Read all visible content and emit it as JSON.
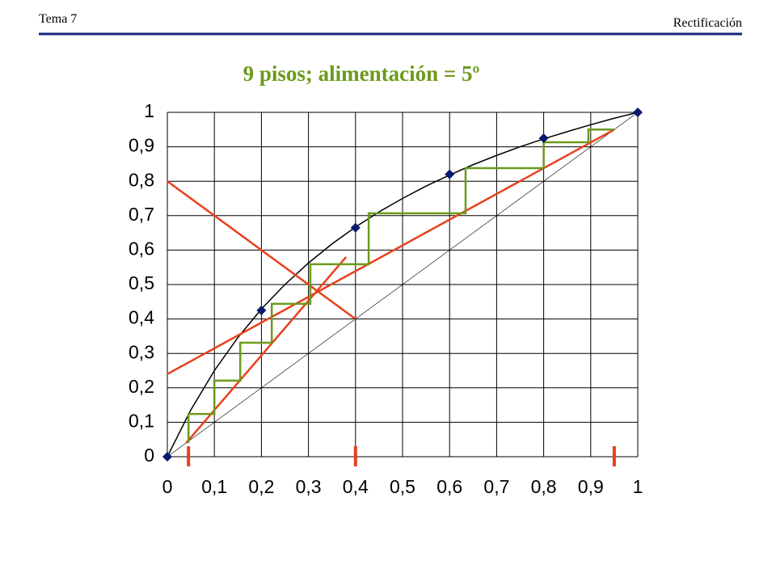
{
  "header": {
    "left": "Tema 7",
    "right": "Rectificación"
  },
  "chart_data": {
    "type": "line",
    "title": "9 pisos; alimentación = 5º",
    "xlim": [
      0,
      1
    ],
    "ylim": [
      0,
      1
    ],
    "xticks": [
      0,
      {
        "value": 0.1,
        "label": "0,1"
      },
      {
        "value": 0.2,
        "label": "0,2"
      },
      {
        "value": 0.3,
        "label": "0,3"
      },
      {
        "value": 0.4,
        "label": "0,4"
      },
      {
        "value": 0.5,
        "label": "0,5"
      },
      {
        "value": 0.6,
        "label": "0,6"
      },
      {
        "value": 0.7,
        "label": "0,7"
      },
      {
        "value": 0.8,
        "label": "0,8"
      },
      {
        "value": 0.9,
        "label": "0,9"
      },
      1
    ],
    "yticks": [
      0,
      {
        "value": 0.1,
        "label": "0,1"
      },
      {
        "value": 0.2,
        "label": "0,2"
      },
      {
        "value": 0.3,
        "label": "0,3"
      },
      {
        "value": 0.4,
        "label": "0,4"
      },
      {
        "value": 0.5,
        "label": "0,5"
      },
      {
        "value": 0.6,
        "label": "0,6"
      },
      {
        "value": 0.7,
        "label": "0,7"
      },
      {
        "value": 0.8,
        "label": "0,8"
      },
      {
        "value": 0.9,
        "label": "0,9"
      },
      1
    ],
    "grid": true,
    "series": [
      {
        "color": "#000000",
        "x": [
          0,
          1
        ],
        "values": [
          0,
          1
        ]
      },
      {
        "color": "#000000",
        "x": [
          0,
          0.05,
          0.1,
          0.15,
          0.2,
          0.25,
          0.3,
          0.35,
          0.4,
          0.45,
          0.5,
          0.55,
          0.6,
          0.65,
          0.7,
          0.75,
          0.8,
          0.85,
          0.9,
          0.95,
          1
        ],
        "values": [
          0,
          0.136,
          0.25,
          0.346,
          0.429,
          0.5,
          0.5625,
          0.618,
          0.667,
          0.711,
          0.75,
          0.786,
          0.818,
          0.848,
          0.875,
          0.9,
          0.923,
          0.944,
          0.964,
          0.983,
          1
        ]
      },
      {
        "color": "#e8401c",
        "x": [
          0,
          0.95
        ],
        "values": [
          0.24,
          0.95
        ]
      },
      {
        "color": "#e8401c",
        "x": [
          0.04,
          0.38
        ],
        "values": [
          0.04,
          0.58
        ]
      },
      {
        "color": "#e8401c",
        "x": [
          0,
          0.4
        ],
        "values": [
          0.8,
          0.4
        ]
      },
      {
        "color": "#6b9a1b",
        "x": [
          0.95,
          0.895,
          0.895,
          0.8,
          0.8,
          0.634,
          0.634,
          0.428,
          0.428,
          0.304,
          0.304,
          0.222,
          0.222,
          0.155,
          0.155,
          0.1,
          0.1,
          0.045,
          0.045
        ],
        "values": [
          0.95,
          0.95,
          0.913,
          0.913,
          0.838,
          0.838,
          0.707,
          0.707,
          0.559,
          0.559,
          0.444,
          0.444,
          0.331,
          0.331,
          0.221,
          0.221,
          0.124,
          0.124,
          0.04
        ]
      },
      {
        "color": "#0a1a6e",
        "marker": "diamond",
        "line": false,
        "x": [
          0,
          0.2,
          0.4,
          0.6,
          0.8,
          1
        ],
        "values": [
          0,
          0.425,
          0.665,
          0.82,
          0.925,
          1
        ]
      }
    ],
    "feed_marks": {
      "color": "#e8401c",
      "x": [
        0.045,
        0.4,
        0.95
      ]
    }
  }
}
